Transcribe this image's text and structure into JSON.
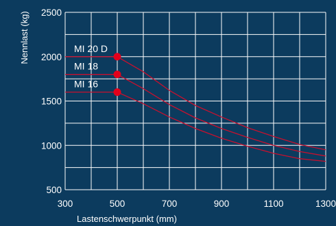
{
  "chart_data": {
    "type": "line",
    "xlabel": "Lastenschwerpunkt (mm)",
    "ylabel": "Nennlast (kg)",
    "xlim": [
      300,
      1300
    ],
    "ylim": [
      500,
      2500
    ],
    "xticks": [
      300,
      500,
      700,
      900,
      1100,
      1300
    ],
    "yticks": [
      500,
      1000,
      1500,
      2000,
      2500
    ],
    "grid": true,
    "colors": {
      "background": "#0c3b5e",
      "grid": "#ffffff",
      "line": "#c8102e",
      "marker": "#e3001b",
      "text": "#ffffff"
    },
    "series": [
      {
        "name": "MI 20 D",
        "x": [
          300,
          500,
          600,
          700,
          800,
          900,
          1000,
          1100,
          1200,
          1300
        ],
        "y": [
          2000,
          2000,
          1830,
          1620,
          1450,
          1320,
          1200,
          1100,
          1010,
          950
        ]
      },
      {
        "name": "MI 18",
        "x": [
          300,
          500,
          600,
          700,
          800,
          900,
          1000,
          1100,
          1200,
          1300
        ],
        "y": [
          1800,
          1800,
          1640,
          1460,
          1310,
          1190,
          1090,
          1000,
          930,
          880
        ]
      },
      {
        "name": "MI 16",
        "x": [
          300,
          500,
          600,
          700,
          800,
          900,
          1000,
          1100,
          1200,
          1300
        ],
        "y": [
          1600,
          1600,
          1470,
          1320,
          1190,
          1080,
          990,
          910,
          850,
          820
        ]
      }
    ],
    "markers": [
      {
        "x": 500,
        "y": 2000
      },
      {
        "x": 500,
        "y": 1800
      },
      {
        "x": 500,
        "y": 1600
      }
    ]
  }
}
